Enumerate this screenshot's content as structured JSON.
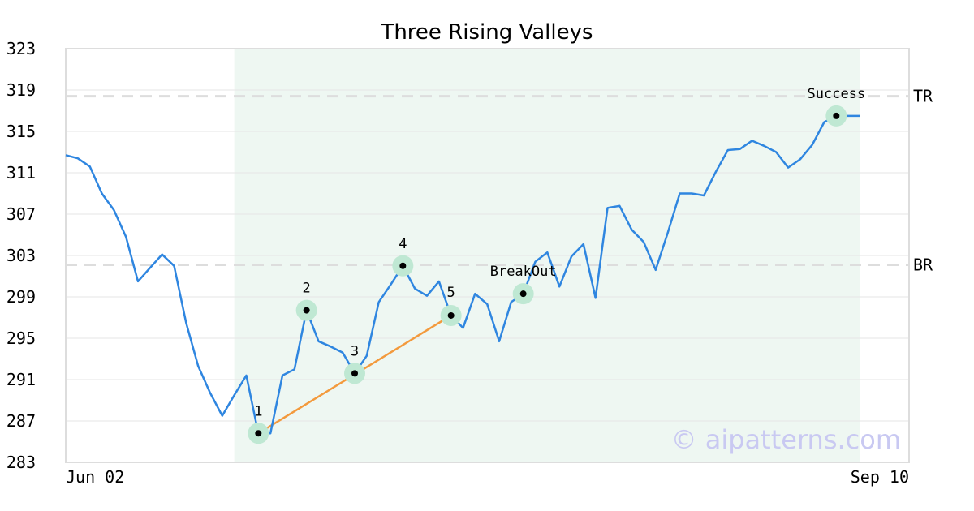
{
  "chart_data": {
    "type": "line",
    "title": "Three Rising Valleys",
    "xlabel": "",
    "ylabel": "",
    "ylim": [
      283,
      323
    ],
    "yticks": [
      "323",
      "319",
      "315",
      "311",
      "307",
      "303",
      "299",
      "295",
      "291",
      "287",
      "283"
    ],
    "x_start_label": "Jun 02",
    "x_end_label": "Sep 10",
    "grid": true,
    "colors": {
      "line": "#2f86e0",
      "trend": "#f39a3d",
      "marker_halo": "#bfe8d3",
      "marker": "#000000",
      "shade": "#eef7f2",
      "level": "#dddddd",
      "watermark": "#c9c9f2"
    },
    "pattern_range": [
      14,
      66
    ],
    "series": [
      {
        "values": [
          312.7,
          312.4,
          311.6,
          309.0,
          307.4,
          304.8,
          300.5,
          301.8,
          303.1,
          302.0,
          296.5,
          292.3,
          289.7,
          287.5,
          289.5,
          291.4,
          285.8,
          285.8,
          291.4,
          292.0,
          297.7,
          294.7,
          294.2,
          293.6,
          291.6,
          293.3,
          298.5,
          300.2,
          302.0,
          299.8,
          299.1,
          300.5,
          297.2,
          296.0,
          299.3,
          298.3,
          294.7,
          298.5,
          299.3,
          302.4,
          303.3,
          300.0,
          302.9,
          304.1,
          298.9,
          307.6,
          307.8,
          305.5,
          304.3,
          301.6,
          305.2,
          309.0,
          309.0,
          308.8,
          311.1,
          313.2,
          313.3,
          314.1,
          313.6,
          313.0,
          311.5,
          312.3,
          313.7,
          315.9,
          316.5,
          316.5,
          316.5
        ]
      }
    ],
    "levels": [
      {
        "label": "TR",
        "value": 318.4
      },
      {
        "label": "BR",
        "value": 302.1
      }
    ],
    "trendline": {
      "from": 16,
      "to": 32
    },
    "annotations": [
      {
        "label": "1",
        "index": 16,
        "position": "above"
      },
      {
        "label": "2",
        "index": 20,
        "position": "above"
      },
      {
        "label": "3",
        "index": 24,
        "position": "above"
      },
      {
        "label": "4",
        "index": 28,
        "position": "above"
      },
      {
        "label": "5",
        "index": 32,
        "position": "above-right"
      },
      {
        "label": "BreakOut",
        "index": 38,
        "position": "above"
      },
      {
        "label": "Success",
        "index": 64,
        "position": "above"
      }
    ],
    "watermark": "© aipatterns.com"
  }
}
